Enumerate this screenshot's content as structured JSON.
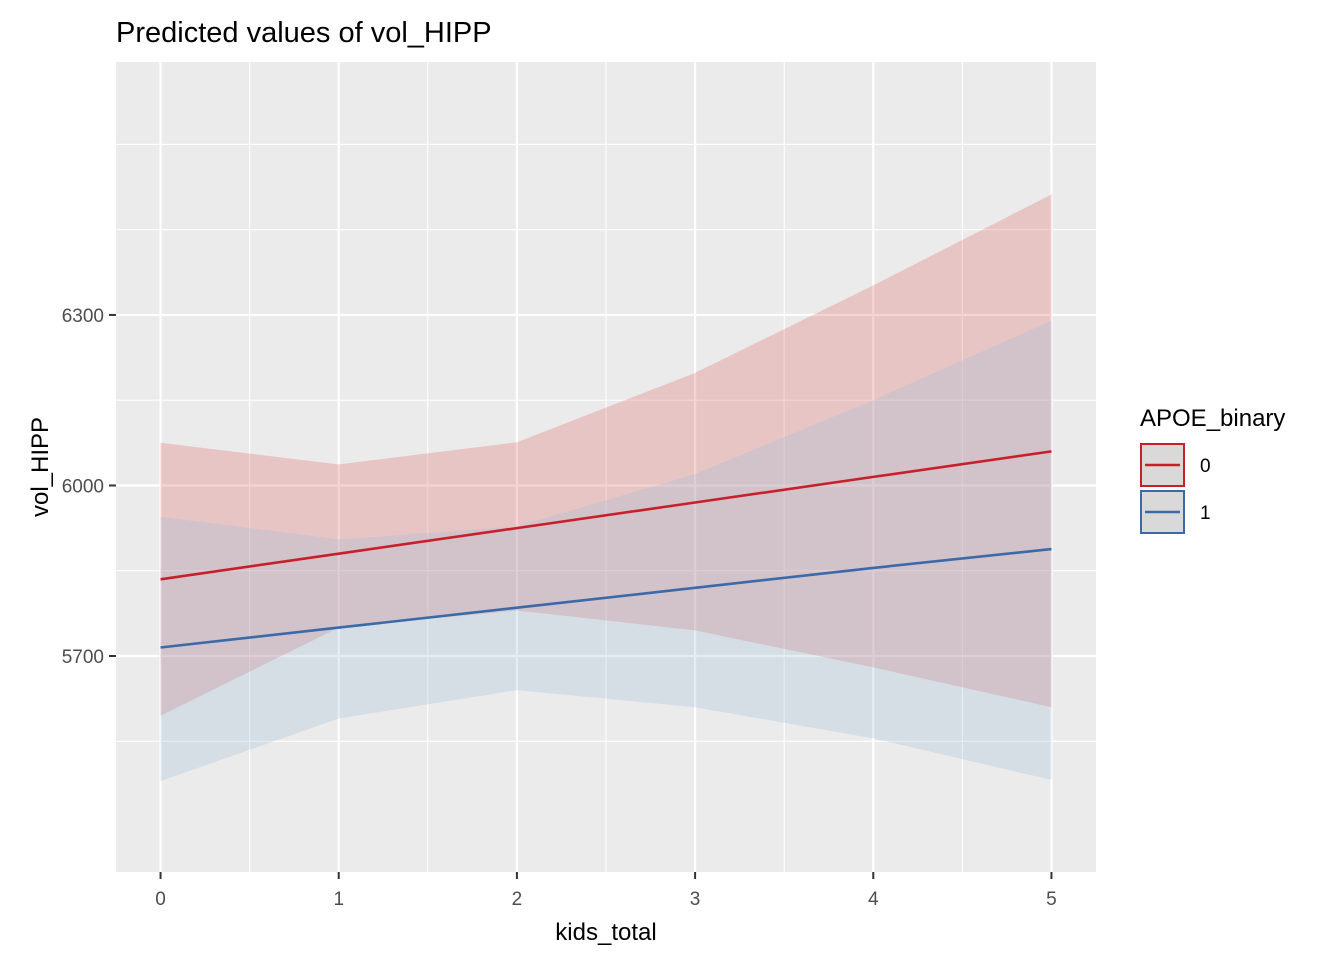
{
  "chart_data": {
    "type": "line",
    "title": "Predicted values of vol_HIPP",
    "xlabel": "kids_total",
    "ylabel": "vol_HIPP",
    "x": [
      0,
      1,
      2,
      3,
      4,
      5
    ],
    "xlim": [
      -0.25,
      5.25
    ],
    "ylim": [
      5320,
      6745
    ],
    "x_ticks": [
      0,
      1,
      2,
      3,
      4,
      5
    ],
    "x_tick_labels": [
      "0",
      "1",
      "2",
      "3",
      "4",
      "5"
    ],
    "y_ticks": [
      5700,
      6000,
      6300
    ],
    "y_tick_labels": [
      "5700",
      "6000",
      "6300"
    ],
    "y_minor_ticks": [
      5550,
      5850,
      6150,
      6450,
      6600
    ],
    "x_minor_ticks": [
      0.5,
      1.5,
      2.5,
      3.5,
      4.5
    ],
    "grid": true,
    "legend": {
      "title": "APOE_binary",
      "position": "right"
    },
    "series": [
      {
        "name": "0",
        "color": "#c8202a",
        "fill": "#e06666",
        "values": [
          5835,
          5880,
          5925,
          5970,
          6015,
          6060
        ],
        "ci_low": [
          5595,
          5750,
          5780,
          5745,
          5680,
          5610
        ],
        "ci_high": [
          6075,
          6037,
          6076,
          6198,
          6352,
          6512
        ]
      },
      {
        "name": "1",
        "color": "#3b6aa8",
        "fill": "#9fb9d9",
        "values": [
          5715,
          5750,
          5785,
          5820,
          5855,
          5888
        ],
        "ci_low": [
          5480,
          5590,
          5640,
          5610,
          5555,
          5482
        ],
        "ci_high": [
          5945,
          5905,
          5928,
          6020,
          6150,
          6290
        ]
      }
    ]
  }
}
